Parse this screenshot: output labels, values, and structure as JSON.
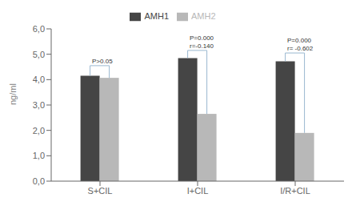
{
  "chart_data": {
    "type": "bar",
    "categories": [
      "S+CIL",
      "I+CIL",
      "I/R+CIL"
    ],
    "series": [
      {
        "name": "AMH1",
        "color": "#454545",
        "values": [
          4.15,
          4.85,
          4.72
        ]
      },
      {
        "name": "AMH2",
        "color": "#b8b8b8",
        "values": [
          4.07,
          2.65,
          1.9
        ]
      }
    ],
    "ylabel": "ng/ml",
    "ylim": [
      0,
      6.0
    ],
    "yticks": [
      {
        "value": 0.0,
        "label": "0,0"
      },
      {
        "value": 1.0,
        "label": "1,0"
      },
      {
        "value": 2.0,
        "label": "2,0"
      },
      {
        "value": 3.0,
        "label": "3,0"
      },
      {
        "value": 4.0,
        "label": "4,0"
      },
      {
        "value": 5.0,
        "label": "5,0"
      },
      {
        "value": 6.0,
        "label": "6,0"
      }
    ],
    "annotations": [
      {
        "category": "S+CIL",
        "text": "P>0.05",
        "y": 4.55
      },
      {
        "category": "I+CIL",
        "text": "P=0.000\nr=-0.140",
        "y": 5.15
      },
      {
        "category": "I/R+CIL",
        "text": "P=0.000\nr= -0.602",
        "y": 5.05
      }
    ],
    "legend": "top",
    "grid": false
  }
}
